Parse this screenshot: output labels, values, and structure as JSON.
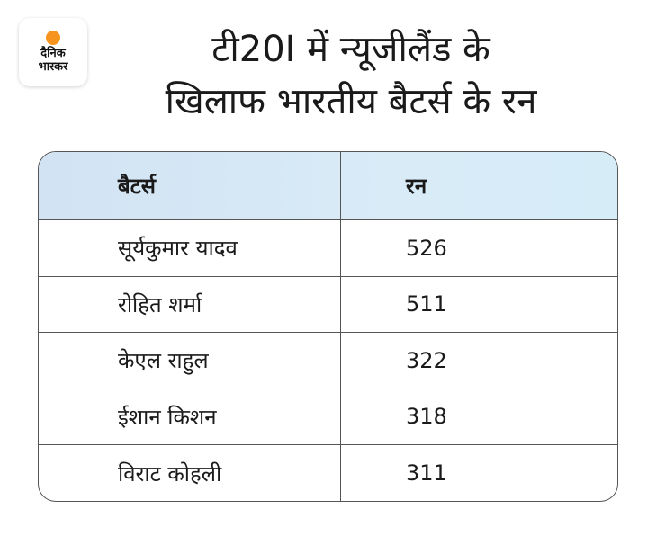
{
  "logo": {
    "line1": "दैनिक",
    "line2": "भास्कर",
    "accent": "#f7941d"
  },
  "title": {
    "line1": "टी20I में न्यूजीलैंड के",
    "line2": "खिलाफ भारतीय बैटर्स के रन"
  },
  "colors": {
    "header_bg": "#d6e8f6",
    "border": "#555555",
    "text": "#1a1a1a"
  },
  "chart_data": {
    "type": "table",
    "columns": [
      "बैटर्स",
      "रन"
    ],
    "rows": [
      [
        "सूर्यकुमार यादव",
        "526"
      ],
      [
        "रोहित शर्मा",
        "511"
      ],
      [
        "केएल राहुल",
        "322"
      ],
      [
        "ईशान किशन",
        "318"
      ],
      [
        "विराट कोहली",
        "311"
      ]
    ]
  }
}
